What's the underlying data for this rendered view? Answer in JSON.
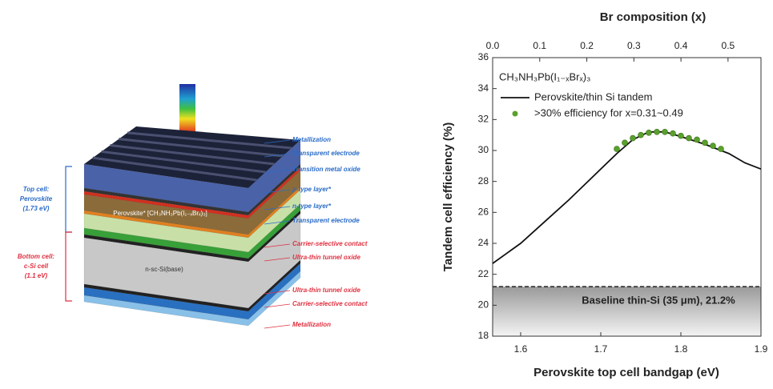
{
  "diagram": {
    "right_labels": [
      "Metallization",
      "Transparent electrode",
      "Transition metal oxide",
      "p-type layer*",
      "n-type layer*",
      "Transparent electrode",
      "Carrier-selective contact",
      "Ultra-thin tunnel oxide",
      "Ultra-thin tunnel oxide",
      "Carrier-selective contact",
      "Metallization"
    ],
    "top_cell": [
      "Top cell:",
      "Perovskite",
      "(1.73 eV)"
    ],
    "bottom_cell": [
      "Bottom cell:",
      "c-Si cell",
      "(1.1 eV)"
    ],
    "perovskite_layer": "Perovskite* [CH₃NH₃Pb(I₁₋ₓBrₓ)₃]",
    "base_layer": "n-sc-Si(base)"
  },
  "chart_data": {
    "type": "line",
    "title": "Br composition (x)",
    "xlabel": "Perovskite top cell bandgap (eV)",
    "ylabel": "Tandem cell efficiency (%)",
    "legend_title": "CH₃NH₃Pb(I₁₋ₓBrₓ)₃",
    "xlim": [
      1.565,
      1.9
    ],
    "xticks": [
      1.6,
      1.7,
      1.8,
      1.9
    ],
    "x2lim": [
      0,
      0.57
    ],
    "x2ticks": [
      {
        "value": 0,
        "label": "0.0"
      },
      0.1,
      0.2,
      0.3,
      0.4,
      0.5
    ],
    "ylim": [
      18,
      36
    ],
    "yticks": [
      18,
      20,
      22,
      24,
      26,
      28,
      30,
      32,
      34,
      36
    ],
    "series": [
      {
        "name": "Perovskite/thin Si tandem",
        "color": "#111111",
        "marker": false,
        "x": [
          1.565,
          1.6,
          1.63,
          1.66,
          1.69,
          1.72,
          1.74,
          1.76,
          1.78,
          1.8,
          1.83,
          1.86,
          1.88,
          1.9
        ],
        "values": [
          22.7,
          24.0,
          25.4,
          26.8,
          28.3,
          29.8,
          30.7,
          31.2,
          31.2,
          30.9,
          30.4,
          29.8,
          29.2,
          28.8
        ]
      },
      {
        "name": ">30% efficiency for x=0.31~0.49",
        "color": "#5aa02c",
        "marker": true,
        "x": [
          1.72,
          1.73,
          1.74,
          1.75,
          1.76,
          1.77,
          1.78,
          1.79,
          1.8,
          1.81,
          1.82,
          1.83,
          1.84,
          1.85
        ],
        "values": [
          30.1,
          30.5,
          30.8,
          31.0,
          31.15,
          31.2,
          31.2,
          31.1,
          30.95,
          30.8,
          30.7,
          30.5,
          30.3,
          30.1
        ]
      }
    ],
    "baseline": {
      "value": 21.2,
      "label": "Baseline thin-Si (35 μm), 21.2%"
    }
  }
}
